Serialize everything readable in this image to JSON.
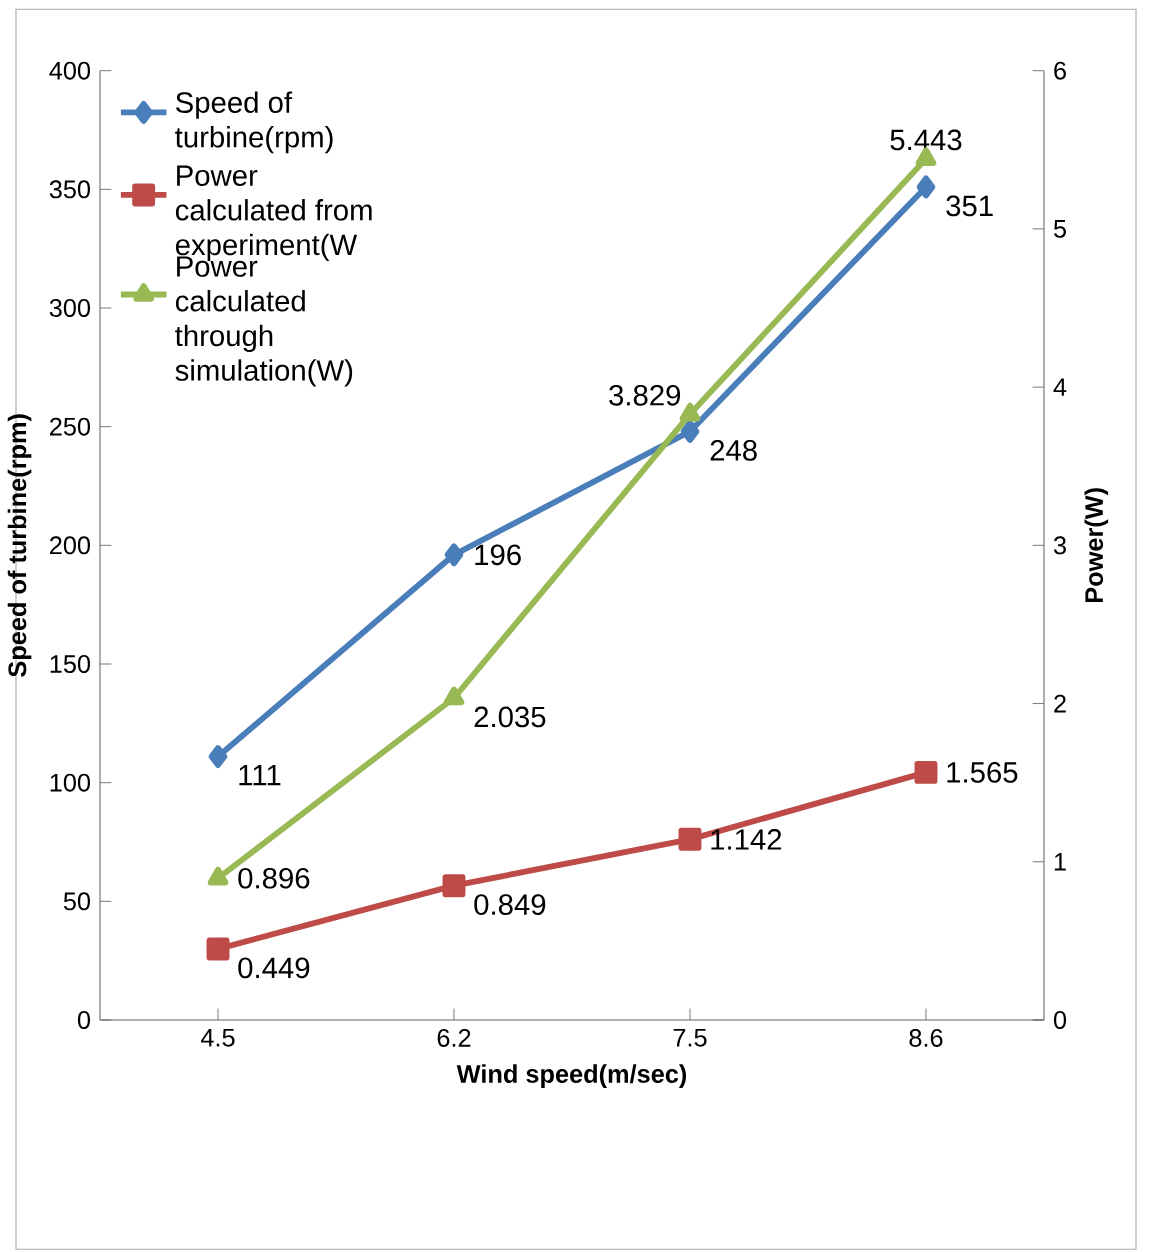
{
  "chart_data": {
    "type": "line",
    "xlabel": "Wind speed(m/sec)",
    "ylabel": "Speed of turbine(rpm)",
    "y2label": "Power(W)",
    "categories": [
      "4.5",
      "6.2",
      "7.5",
      "8.6"
    ],
    "series": [
      {
        "name": "Speed of turbine(rpm)",
        "color": "#4a7ebb",
        "marker": "diamond",
        "values": [
          111,
          196,
          248,
          351
        ]
      },
      {
        "name": "Power calculated from experiment(W",
        "color": "#be4b48",
        "marker": "square",
        "axis": "y2",
        "values": [
          0.449,
          0.849,
          1.142,
          1.565
        ]
      },
      {
        "name": "Power calculated through simulation(W)",
        "color": "#98b954",
        "marker": "triangle",
        "axis": "y2",
        "values": [
          0.896,
          2.035,
          3.829,
          5.443
        ]
      }
    ],
    "ylim": [
      0,
      400
    ],
    "yticks": [
      0,
      50,
      100,
      150,
      200,
      250,
      300,
      350,
      400
    ],
    "y2lim": [
      0,
      6
    ],
    "y2ticks": [
      0,
      1,
      2,
      3,
      4,
      5,
      6
    ],
    "data_labels": true,
    "legend": "top left",
    "grid": false
  }
}
